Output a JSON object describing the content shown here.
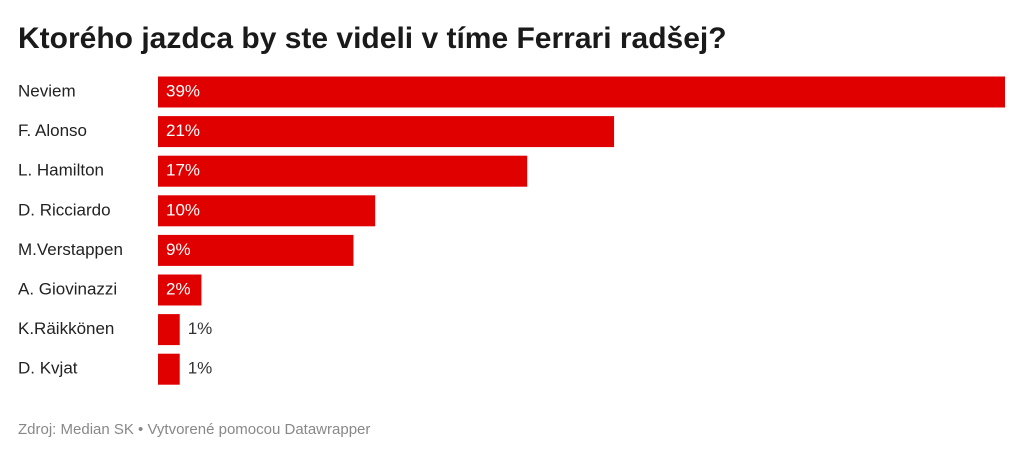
{
  "chart_data": {
    "type": "bar",
    "orientation": "horizontal",
    "title": "Ktorého jazdca by ste videli v tíme Ferrari radšej?",
    "categories": [
      "Neviem",
      "F. Alonso",
      "L. Hamilton",
      "D. Ricciardo",
      "M.Verstappen",
      "A. Giovinazzi",
      "K.Räikkönen",
      "D. Kvjat"
    ],
    "values": [
      39,
      21,
      17,
      10,
      9,
      2,
      1,
      1
    ],
    "value_labels": [
      "39%",
      "21%",
      "17%",
      "10%",
      "9%",
      "2%",
      "1%",
      "1%"
    ],
    "color": "#e00000",
    "source": "Zdroj: Median SK • Vytvorené pomocou Datawrapper"
  }
}
